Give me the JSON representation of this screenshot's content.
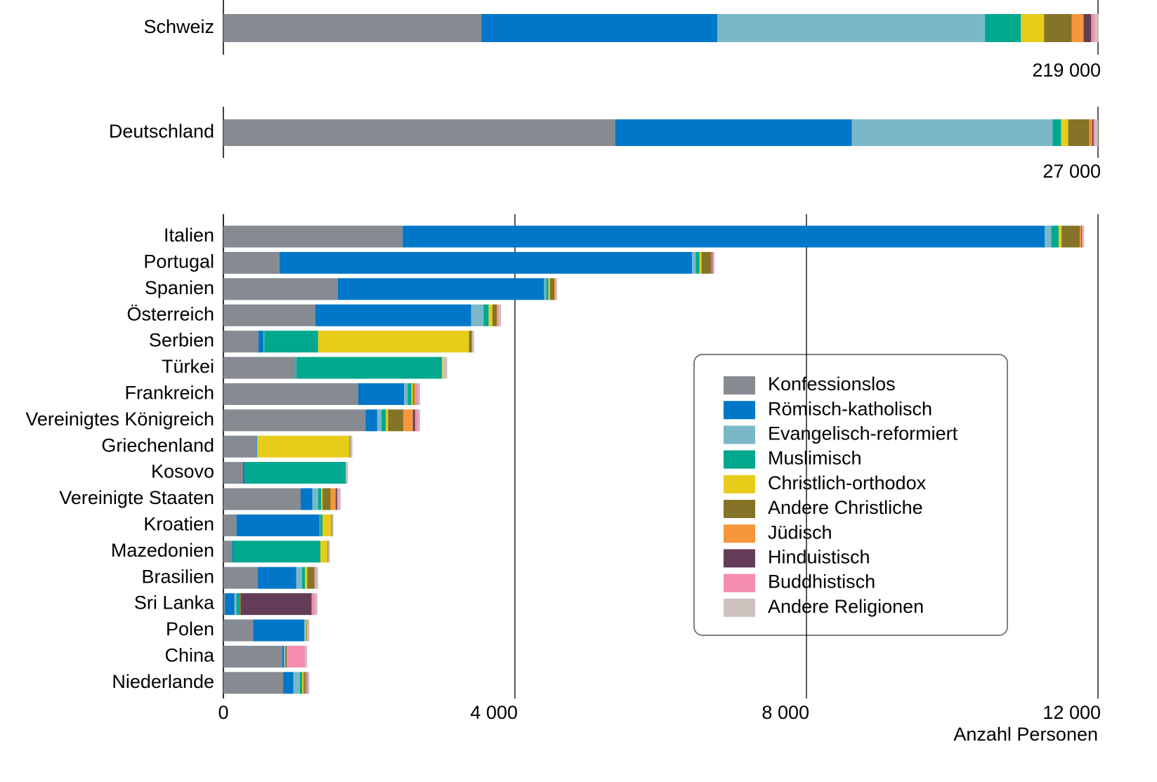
{
  "chart_data": [
    {
      "type": "bar",
      "orientation": "horizontal",
      "stacked": true,
      "categories": [
        "Schweiz"
      ],
      "series": [
        {
          "values": [
            64600
          ]
        },
        {
          "values": [
            59100
          ]
        },
        {
          "values": [
            67000
          ]
        },
        {
          "values": [
            9000
          ]
        },
        {
          "values": [
            5800
          ]
        },
        {
          "values": [
            6900
          ]
        },
        {
          "values": [
            3000
          ]
        },
        {
          "values": [
            1900
          ]
        },
        {
          "values": [
            900
          ]
        },
        {
          "values": [
            900
          ]
        }
      ],
      "xlim": [
        0,
        219000
      ],
      "xticks": [
        {
          "value": 219000,
          "label": "219 000"
        }
      ]
    },
    {
      "type": "bar",
      "orientation": "horizontal",
      "stacked": true,
      "categories": [
        "Deutschland"
      ],
      "series": [
        {
          "values": [
            12100
          ]
        },
        {
          "values": [
            7300
          ]
        },
        {
          "values": [
            6200
          ]
        },
        {
          "values": [
            260
          ]
        },
        {
          "values": [
            220
          ]
        },
        {
          "values": [
            650
          ]
        },
        {
          "values": [
            90
          ]
        },
        {
          "values": [
            40
          ]
        },
        {
          "values": [
            40
          ]
        },
        {
          "values": [
            100
          ]
        }
      ],
      "xlim": [
        0,
        27000
      ],
      "xticks": [
        {
          "value": 27000,
          "label": "27 000"
        }
      ]
    },
    {
      "type": "bar",
      "orientation": "horizontal",
      "stacked": true,
      "categories": [
        "Italien",
        "Portugal",
        "Spanien",
        "Österreich",
        "Serbien",
        "Türkei",
        "Frankreich",
        "Vereinigtes Königreich",
        "Griechenland",
        "Kosovo",
        "Vereinigte Staaten",
        "Kroatien",
        "Mazedonien",
        "Brasilien",
        "Sri Lanka",
        "Polen",
        "China",
        "Niederlande"
      ],
      "series": [
        {
          "name": "Konfessionslos",
          "color": "#868a91",
          "values": [
            2460,
            770,
            1570,
            1260,
            480,
            980,
            1850,
            1950,
            450,
            270,
            1060,
            180,
            120,
            470,
            20,
            410,
            810,
            820
          ]
        },
        {
          "name": "Römisch-katholisch",
          "color": "#0077c8",
          "values": [
            8810,
            5660,
            2830,
            2140,
            70,
            10,
            630,
            160,
            10,
            20,
            160,
            1140,
            10,
            530,
            130,
            700,
            20,
            140
          ]
        },
        {
          "name": "Evangelisch-reformiert",
          "color": "#7ab8c8",
          "values": [
            90,
            50,
            30,
            170,
            10,
            10,
            50,
            60,
            10,
            0,
            80,
            10,
            0,
            80,
            30,
            20,
            20,
            90
          ]
        },
        {
          "name": "Muslimisch",
          "color": "#00a88e",
          "values": [
            100,
            50,
            30,
            70,
            740,
            2000,
            50,
            60,
            0,
            1390,
            40,
            30,
            1200,
            40,
            40,
            0,
            0,
            30
          ]
        },
        {
          "name": "Christlich-orthodox",
          "color": "#e8cc1a",
          "values": [
            40,
            30,
            20,
            50,
            2070,
            10,
            20,
            30,
            1260,
            0,
            20,
            120,
            100,
            30,
            0,
            10,
            0,
            20
          ]
        },
        {
          "name": "Andere Christliche",
          "color": "#857428",
          "values": [
            250,
            130,
            60,
            60,
            40,
            0,
            20,
            210,
            10,
            0,
            110,
            10,
            10,
            100,
            20,
            10,
            20,
            20
          ]
        },
        {
          "name": "Jüdisch",
          "color": "#f5973a",
          "values": [
            20,
            10,
            10,
            10,
            0,
            0,
            20,
            130,
            0,
            0,
            70,
            0,
            0,
            0,
            0,
            0,
            0,
            10
          ]
        },
        {
          "name": "Hinduistisch",
          "color": "#643c57",
          "values": [
            10,
            10,
            0,
            0,
            0,
            0,
            0,
            30,
            0,
            0,
            20,
            0,
            0,
            0,
            970,
            0,
            0,
            10
          ]
        },
        {
          "name": "Buddhistisch",
          "color": "#f48cb1",
          "values": [
            10,
            10,
            10,
            20,
            0,
            0,
            30,
            40,
            0,
            0,
            20,
            0,
            0,
            20,
            50,
            0,
            250,
            20
          ]
        },
        {
          "name": "Andere Religionen",
          "color": "#cbc1bd",
          "values": [
            20,
            20,
            20,
            30,
            30,
            60,
            30,
            30,
            30,
            30,
            30,
            20,
            20,
            30,
            30,
            30,
            30,
            20
          ]
        }
      ],
      "xlim": [
        0,
        12000
      ],
      "xticks": [
        0,
        {
          "value": 4000,
          "label": "4 000"
        },
        {
          "value": 8000,
          "label": "8 000"
        },
        {
          "value": 12000,
          "label": "12 000"
        }
      ],
      "x_label": "Anzahl Personen",
      "grid": true,
      "legend": "right"
    }
  ]
}
